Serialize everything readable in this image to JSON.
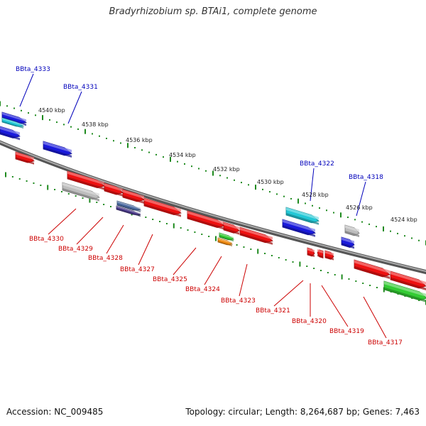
{
  "title": "Bradyrhizobium sp. BTAi1, complete genome",
  "footer": {
    "accession": "Accession: NC_009485",
    "topology": "Topology: circular; Length: 8,264,687 bp; Genes: 7,463"
  },
  "colors": {
    "backbone": "#808080",
    "tick": "#1e8a1e",
    "label_upper": "#0000bb",
    "label_lower": "#cc0000",
    "gene_red": "#ee1111",
    "gene_blue": "#1a1adc",
    "gene_cyan": "#22c8d6",
    "gene_gray": "#bdbdbd",
    "gene_green": "#33cc33",
    "gene_orange": "#f08a10",
    "gene_slate": "#4a6aa0"
  },
  "scale_labels": [
    "4540 kbp",
    "4538 kbp",
    "4536 kbp",
    "4534 kbp",
    "4532 kbp",
    "4530 kbp",
    "4528 kbp",
    "4526 kbp",
    "4524 kbp"
  ],
  "gene_labels_upper": [
    "BBta_4333",
    "BBta_4331",
    "BBta_4322",
    "BBta_4318"
  ],
  "gene_labels_lower": [
    "BBta_4330",
    "BBta_4329",
    "BBta_4328",
    "BBta_4327",
    "BBta_4325",
    "BBta_4324",
    "BBta_4323",
    "BBta_4321",
    "BBta_4320",
    "BBta_4319",
    "BBta_4317"
  ]
}
